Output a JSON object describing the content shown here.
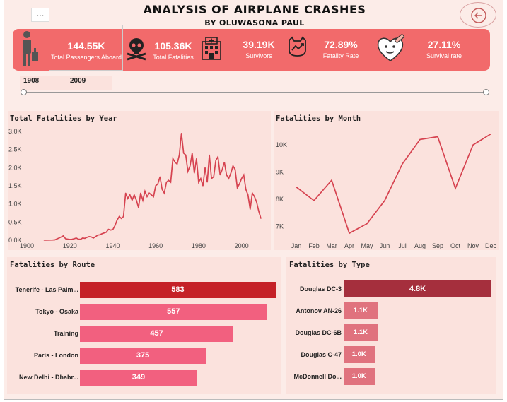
{
  "header": {
    "title": "ANALYSIS OF AIRPLANE CRASHES",
    "subtitle": "BY OLUWASONA PAUL",
    "more_label": "...",
    "back_icon": "arrow-left-circle-icon"
  },
  "kpis": [
    {
      "value": "144.55K",
      "label": "Total Passengers Aboard",
      "icon": "passenger-luggage-icon"
    },
    {
      "value": "105.36K",
      "label": "Total Fatalities",
      "icon": "skull-crossbones-icon"
    },
    {
      "value": "39.19K",
      "label": "Survivors",
      "icon": "hospital-icon"
    },
    {
      "value": "72.89%",
      "label": "Fatality Rate",
      "icon": "cat-skull-trend-icon"
    },
    {
      "value": "27.11%",
      "label": "Survival rate",
      "icon": "heart-bandage-icon"
    }
  ],
  "slicer": {
    "start": "1908",
    "end": "2009"
  },
  "colors": {
    "kpi_bg": "#f26a6b",
    "line": "#d64350",
    "route_top": "#c52127",
    "route_bar": "#f2607f",
    "type_top": "#a52f3d",
    "type_bar": "#e0727e"
  },
  "chart_data": [
    {
      "type": "line",
      "title": "Total Fatalities by Year",
      "x_ticks": [
        "1900",
        "1920",
        "1940",
        "1960",
        "1980",
        "2000"
      ],
      "y_ticks": [
        "0.0K",
        "0.5K",
        "1.0K",
        "1.5K",
        "2.0K",
        "2.5K",
        "3.0K"
      ],
      "xlim": [
        1900,
        2010
      ],
      "ylim": [
        0,
        3000
      ],
      "x": [
        1908,
        1910,
        1912,
        1913,
        1915,
        1916,
        1917,
        1918,
        1919,
        1920,
        1921,
        1922,
        1923,
        1924,
        1925,
        1926,
        1927,
        1928,
        1929,
        1930,
        1931,
        1932,
        1933,
        1934,
        1935,
        1936,
        1937,
        1938,
        1939,
        1940,
        1941,
        1942,
        1943,
        1944,
        1945,
        1946,
        1947,
        1948,
        1949,
        1950,
        1951,
        1952,
        1953,
        1954,
        1955,
        1956,
        1957,
        1958,
        1959,
        1960,
        1961,
        1962,
        1963,
        1964,
        1965,
        1966,
        1967,
        1968,
        1969,
        1970,
        1971,
        1972,
        1973,
        1974,
        1975,
        1976,
        1977,
        1978,
        1979,
        1980,
        1981,
        1982,
        1983,
        1984,
        1985,
        1986,
        1987,
        1988,
        1989,
        1990,
        1991,
        1992,
        1993,
        1994,
        1995,
        1996,
        1997,
        1998,
        1999,
        2000,
        2001,
        2002,
        2003,
        2004,
        2005,
        2006,
        2007,
        2008,
        2009
      ],
      "values": [
        1,
        3,
        6,
        10,
        60,
        90,
        120,
        40,
        30,
        20,
        25,
        40,
        60,
        30,
        25,
        60,
        50,
        80,
        100,
        90,
        60,
        100,
        140,
        150,
        180,
        200,
        220,
        300,
        280,
        290,
        400,
        550,
        650,
        600,
        650,
        1300,
        1150,
        1250,
        1100,
        1250,
        1100,
        900,
        1300,
        1100,
        1350,
        1200,
        1300,
        1250,
        1200,
        1500,
        1550,
        1750,
        1400,
        1300,
        1600,
        1650,
        1600,
        2250,
        2150,
        2100,
        2350,
        2950,
        2400,
        2350,
        1900,
        2050,
        2400,
        1850,
        2250,
        1600,
        1700,
        1500,
        2000,
        1600,
        2350,
        1700,
        1750,
        2200,
        2300,
        1800,
        1950,
        2150,
        1800,
        1700,
        1850,
        2050,
        1950,
        1450,
        1550,
        1700,
        1800,
        1400,
        1250,
        850,
        1300,
        1200,
        1050,
        800,
        600
      ]
    },
    {
      "type": "line",
      "title": "Fatalities by Month",
      "categories": [
        "Jan",
        "Feb",
        "Mar",
        "Apr",
        "May",
        "Jun",
        "Jul",
        "Aug",
        "Sep",
        "Oct",
        "Nov",
        "Dec"
      ],
      "y_ticks": [
        "7K",
        "8K",
        "9K",
        "10K"
      ],
      "ylim": [
        6700,
        10600
      ],
      "values": [
        8450,
        7950,
        8700,
        6750,
        7100,
        7950,
        9300,
        10200,
        10300,
        8400,
        10000,
        10400
      ]
    },
    {
      "type": "bar",
      "orientation": "horizontal",
      "title": "Fatalities by Route",
      "categories": [
        "Tenerife - Las Palm...",
        "Tokyo - Osaka",
        "Training",
        "Paris - London",
        "New Delhi - Dhahr..."
      ],
      "values": [
        583,
        557,
        457,
        375,
        349
      ],
      "labels": [
        "583",
        "557",
        "457",
        "375",
        "349"
      ]
    },
    {
      "type": "bar",
      "orientation": "horizontal",
      "title": "Fatalities by Type",
      "categories": [
        "Douglas DC-3",
        "Antonov AN-26",
        "Douglas DC-6B",
        "Douglas C-47",
        "McDonnell Do..."
      ],
      "values": [
        4800,
        1100,
        1100,
        1000,
        1000
      ],
      "labels": [
        "4.8K",
        "1.1K",
        "1.1K",
        "1.0K",
        "1.0K"
      ]
    }
  ]
}
